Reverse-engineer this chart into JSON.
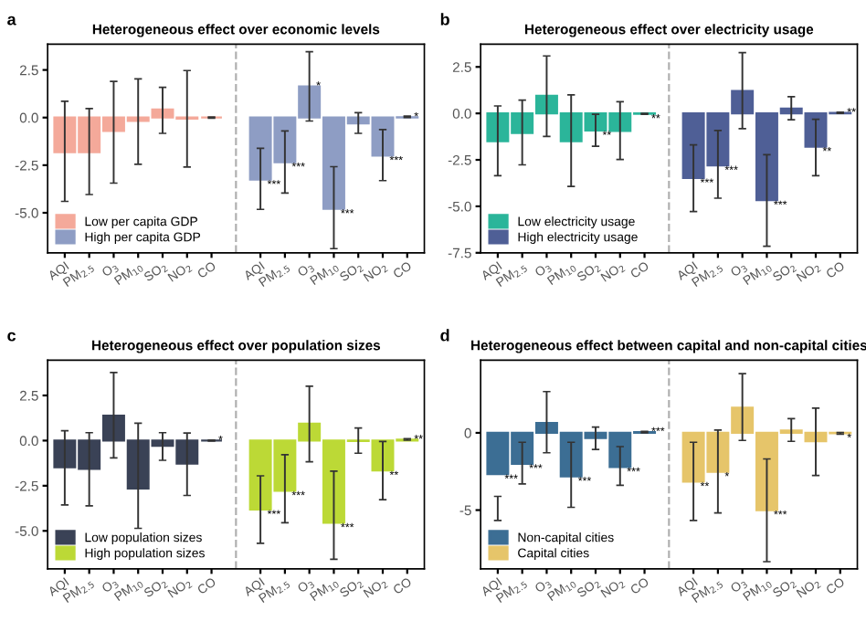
{
  "chart_data": [
    {
      "type": "bar",
      "title": "Heterogeneous effect over economic levels",
      "annotations": [
        "a"
      ],
      "ylim": [
        -7.1,
        3.85
      ],
      "yticks": [
        {
          "value": -5,
          "label": "-5.0"
        },
        {
          "value": -2.5,
          "label": "-2.5"
        },
        {
          "value": 0,
          "label": "0.0"
        },
        2.5
      ],
      "categories": [
        "AQI",
        "PM$_{2.5}$",
        "O$_{3}$",
        "PM$_{10}$",
        "SO$_{2}$",
        "NO$_{2}$",
        "CO",
        null,
        "AQI",
        "PM$_{2.5}$",
        "O$_{3}$",
        "PM$_{10}$",
        "SO$_{2}$",
        "NO$_{2}$",
        "CO"
      ],
      "ref_lines": [
        {
          "axis": "x",
          "color": "#b0b0b0",
          "line_style": "dashed"
        }
      ],
      "legend": "lower left",
      "series": [
        {
          "name": "Low per capita GDP",
          "color": "#f4a99a",
          "values": [
            -1.82,
            -1.82,
            -0.7,
            -0.18,
            0.42,
            -0.05,
            0.0,
            null,
            null,
            null,
            null,
            null,
            null,
            null,
            null
          ],
          "errors": [
            [
              -4.4,
              0.86
            ],
            [
              -4.04,
              0.47
            ],
            [
              -3.44,
              1.9
            ],
            [
              -2.45,
              2.03
            ],
            [
              -0.83,
              1.59
            ],
            [
              -2.6,
              2.47
            ],
            [
              -0.03,
              0.03
            ],
            null,
            null,
            null,
            null,
            null,
            null,
            null,
            null
          ]
        },
        {
          "name": "High per capita GDP",
          "color": "#8e9dc4",
          "values": [
            null,
            null,
            null,
            null,
            null,
            null,
            null,
            null,
            -3.26,
            -2.34,
            1.64,
            -4.79,
            -0.31,
            -2.0,
            0.02
          ],
          "errors": [
            null,
            null,
            null,
            null,
            null,
            null,
            null,
            null,
            [
              -4.82,
              -1.61
            ],
            [
              -3.96,
              -0.7
            ],
            [
              -0.18,
              3.46
            ],
            [
              -6.88,
              -2.58
            ],
            [
              -0.83,
              0.26
            ],
            [
              -3.31,
              -0.63
            ],
            [
              0.0,
              0.08
            ]
          ],
          "value_labels": [
            null,
            null,
            null,
            null,
            null,
            null,
            null,
            null,
            "***",
            "***",
            "*",
            "***",
            null,
            "***",
            "*"
          ]
        }
      ]
    },
    {
      "type": "bar",
      "title": "Heterogeneous effect over electricity usage",
      "annotations": [
        "b"
      ],
      "ylim": [
        -7.5,
        3.72
      ],
      "yticks": [
        -7.5,
        {
          "value": -5,
          "label": "-5.0"
        },
        -2.5,
        {
          "value": 0,
          "label": "0.0"
        },
        2.5
      ],
      "categories": [
        "AQI",
        "PM$_{2.5}$",
        "O$_{3}$",
        "PM$_{10}$",
        "SO$_{2}$",
        "NO$_{2}$",
        "CO",
        null,
        "AQI",
        "PM$_{2.5}$",
        "O$_{3}$",
        "PM$_{10}$",
        "SO$_{2}$",
        "NO$_{2}$",
        "CO"
      ],
      "ref_lines": [
        {
          "axis": "x",
          "color": "#b0b0b0",
          "line_style": "dashed"
        }
      ],
      "legend": "lower left",
      "series": [
        {
          "name": "Low electricity usage",
          "color": "#2bb59a",
          "values": [
            -1.5,
            -1.06,
            0.95,
            -1.5,
            -0.92,
            -0.95,
            -0.02,
            null,
            null,
            null,
            null,
            null,
            null,
            null,
            null
          ],
          "errors": [
            [
              -3.35,
              0.4
            ],
            [
              -2.77,
              0.71
            ],
            [
              -1.24,
              3.09
            ],
            [
              -3.93,
              1.0
            ],
            [
              -1.77,
              -0.05
            ],
            [
              -2.48,
              0.63
            ],
            [
              -0.05,
              0.0
            ],
            null,
            null,
            null,
            null,
            null,
            null,
            null,
            null
          ],
          "value_labels": [
            null,
            null,
            null,
            null,
            "**",
            null,
            "**",
            null,
            null,
            null,
            null,
            null,
            null,
            null,
            null
          ]
        },
        {
          "name": "High electricity usage",
          "color": "#4f5f96",
          "values": [
            null,
            null,
            null,
            null,
            null,
            null,
            null,
            null,
            -3.48,
            -2.8,
            1.21,
            -4.67,
            0.26,
            -1.79,
            0.03
          ],
          "errors": [
            null,
            null,
            null,
            null,
            null,
            null,
            null,
            null,
            [
              -5.28,
              -1.69
            ],
            [
              -4.56,
              -0.92
            ],
            [
              -0.82,
              3.27
            ],
            [
              -7.15,
              -2.22
            ],
            [
              -0.34,
              0.9
            ],
            [
              -3.35,
              -0.32
            ],
            [
              0.0,
              0.06
            ]
          ],
          "value_labels": [
            null,
            null,
            null,
            null,
            null,
            null,
            null,
            null,
            "***",
            "***",
            null,
            "***",
            null,
            "**",
            "**"
          ]
        }
      ]
    },
    {
      "type": "bar",
      "title": "Heterogeneous effect over population sizes",
      "annotations": [
        "c"
      ],
      "ylim": [
        -7.1,
        4.45
      ],
      "yticks": [
        {
          "value": -5,
          "label": "-5.0"
        },
        -2.5,
        {
          "value": 0,
          "label": "0.0"
        },
        2.5
      ],
      "categories": [
        "AQI",
        "PM$_{2.5}$",
        "O$_{3}$",
        "PM$_{10}$",
        "SO$_{2}$",
        "NO$_{2}$",
        "CO",
        null,
        "AQI",
        "PM$_{2.5}$",
        "O$_{3}$",
        "PM$_{10}$",
        "SO$_{2}$",
        "NO$_{2}$",
        "CO"
      ],
      "ref_lines": [
        {
          "axis": "x",
          "color": "#b0b0b0",
          "line_style": "dashed"
        }
      ],
      "legend": "lower left",
      "series": [
        {
          "name": "Low population sizes",
          "color": "#3a4256",
          "values": [
            -1.48,
            -1.56,
            1.38,
            -2.65,
            -0.29,
            -1.27,
            0.0,
            null,
            null,
            null,
            null,
            null,
            null,
            null,
            null
          ],
          "errors": [
            [
              -3.56,
              0.55
            ],
            [
              -3.61,
              0.44
            ],
            [
              -0.96,
              3.77
            ],
            [
              -4.86,
              0.96
            ],
            [
              -1.09,
              0.44
            ],
            [
              -3.04,
              0.42
            ],
            [
              -0.03,
              0.03
            ],
            null,
            null,
            null,
            null,
            null,
            null,
            null,
            null
          ],
          "value_labels": [
            null,
            null,
            null,
            null,
            null,
            null,
            "*",
            null,
            null,
            null,
            null,
            null,
            null,
            null,
            null
          ]
        },
        {
          "name": "High population sizes",
          "color": "#bcd936",
          "values": [
            null,
            null,
            null,
            null,
            null,
            null,
            null,
            null,
            -3.82,
            -2.78,
            0.94,
            -4.55,
            -0.02,
            -1.66,
            0.05
          ],
          "errors": [
            null,
            null,
            null,
            null,
            null,
            null,
            null,
            null,
            [
              -5.69,
              -1.95
            ],
            [
              -4.55,
              -0.78
            ],
            [
              -1.17,
              3.01
            ],
            [
              -6.57,
              -1.69
            ],
            [
              -0.7,
              0.7
            ],
            [
              -3.27,
              -0.05
            ],
            [
              0.02,
              0.1
            ]
          ],
          "value_labels": [
            null,
            null,
            null,
            null,
            null,
            null,
            null,
            null,
            "***",
            "***",
            null,
            "***",
            null,
            "**",
            "**"
          ]
        }
      ]
    },
    {
      "type": "bar",
      "title": "Heterogeneous effect between capital and non-capital cities",
      "annotations": [
        "d"
      ],
      "ylim": [
        -8.8,
        4.7
      ],
      "yticks": [
        -5,
        0
      ],
      "categories": [
        "AQI",
        "PM$_{2.5}$",
        "O$_{3}$",
        "PM$_{10}$",
        "SO$_{2}$",
        "NO$_{2}$",
        "CO",
        null,
        "AQI",
        "PM$_{2.5}$",
        "O$_{3}$",
        "PM$_{10}$",
        "SO$_{2}$",
        "NO$_{2}$",
        "CO"
      ],
      "ref_lines": [
        {
          "axis": "x",
          "color": "#b0b0b0",
          "line_style": "dashed"
        }
      ],
      "legend": "lower left",
      "series": [
        {
          "name": "Non-capital cities",
          "color": "#3c6e94",
          "values": [
            -2.67,
            -2.0,
            0.64,
            -2.82,
            -0.34,
            -2.21,
            0.05,
            null,
            null,
            null,
            null,
            null,
            null,
            null,
            null
          ],
          "errors": [
            [
              -5.67,
              -4.11
            ],
            [
              -3.31,
              -0.61
            ],
            [
              -1.29,
              2.67
            ],
            [
              -4.82,
              -0.61
            ],
            [
              -1.07,
              0.37
            ],
            [
              -3.4,
              -0.89
            ],
            [
              0.0,
              0.1
            ],
            null,
            null,
            null,
            null,
            null,
            null,
            null,
            null
          ],
          "value_labels": [
            "***",
            "***",
            null,
            "***",
            null,
            "***",
            "***",
            null,
            null,
            null,
            null,
            null,
            null,
            null,
            null
          ]
        },
        {
          "name": "Capital cities",
          "color": "#e6c56a",
          "values": [
            null,
            null,
            null,
            null,
            null,
            null,
            null,
            null,
            -3.16,
            -2.52,
            1.63,
            -5.0,
            0.15,
            -0.55,
            -0.02
          ],
          "errors": [
            null,
            null,
            null,
            null,
            null,
            null,
            null,
            null,
            [
              -5.67,
              -0.61
            ],
            [
              -5.18,
              0.18
            ],
            [
              -0.49,
              3.83
            ],
            [
              -8.34,
              -1.69
            ],
            [
              -0.55,
              0.92
            ],
            [
              -2.76,
              1.6
            ],
            [
              -0.08,
              0.02
            ]
          ],
          "value_labels": [
            null,
            null,
            null,
            null,
            null,
            null,
            null,
            null,
            "**",
            "*",
            null,
            "***",
            null,
            null,
            "*"
          ]
        }
      ]
    }
  ]
}
